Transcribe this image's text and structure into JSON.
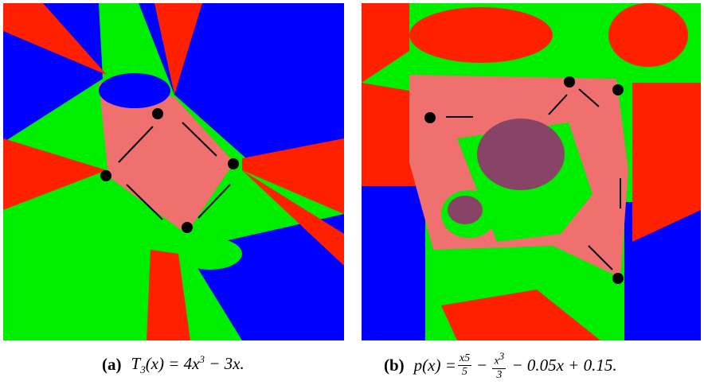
{
  "figures": [
    {
      "label": "(a)",
      "formula": {
        "t": "T",
        "sub": "3",
        "mid": "(x) = 4x",
        "sup": "3",
        "end": " − 3x."
      }
    },
    {
      "label": "(b)",
      "formula": {
        "start": "p(x) = ",
        "f1num": "x5",
        "f1den": "5",
        "op1": " − ",
        "f2num": "x",
        "f2sup": "3",
        "f2den": "3",
        "end": " − 0.05x + 0.15."
      }
    }
  ]
}
